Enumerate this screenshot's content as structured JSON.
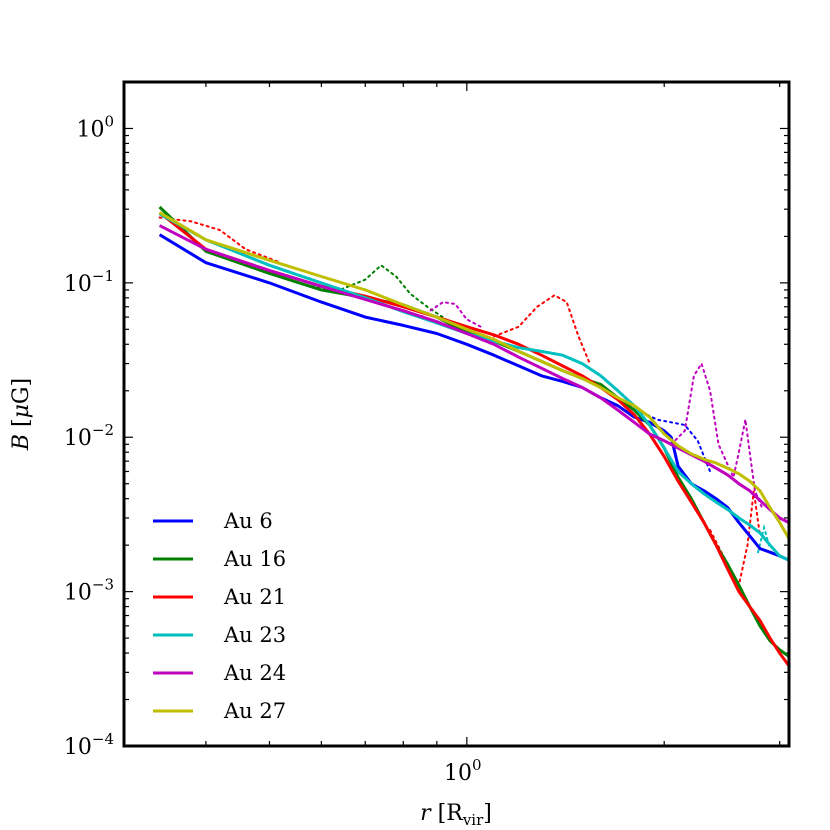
{
  "chart_data": {
    "type": "line",
    "title": "",
    "xlabel": "r [R_vir]",
    "ylabel": "B [μG]",
    "xscale": "log",
    "yscale": "log",
    "xlim": [
      0.3,
      3.1
    ],
    "ylim": [
      0.0001,
      2
    ],
    "xticks": [
      {
        "value": 1,
        "label": "10^0"
      }
    ],
    "yticks": [
      {
        "value": 1,
        "label": "10^0"
      },
      {
        "value": 0.1,
        "label": "10^-1"
      },
      {
        "value": 0.01,
        "label": "10^-2"
      },
      {
        "value": 0.001,
        "label": "10^-3"
      },
      {
        "value": 0.0001,
        "label": "10^-4"
      }
    ],
    "legend_position": "lower-left",
    "series": [
      {
        "name": "Au 6",
        "color": "#0000ff",
        "x": [
          0.34,
          0.4,
          0.5,
          0.6,
          0.7,
          0.8,
          0.9,
          1.0,
          1.1,
          1.2,
          1.3,
          1.4,
          1.5,
          1.6,
          1.7,
          1.8,
          1.9,
          2.0,
          2.05,
          2.1,
          2.2,
          2.3,
          2.4,
          2.5,
          2.6,
          2.7,
          2.8,
          2.9,
          3.0,
          3.1
        ],
        "y": [
          0.205,
          0.135,
          0.1,
          0.075,
          0.06,
          0.053,
          0.047,
          0.04,
          0.034,
          0.029,
          0.025,
          0.023,
          0.021,
          0.018,
          0.016,
          0.0135,
          0.0125,
          0.011,
          0.01,
          0.0065,
          0.005,
          0.0045,
          0.004,
          0.0035,
          0.0028,
          0.0023,
          0.0019,
          0.0018,
          0.0017,
          0.0016
        ]
      },
      {
        "name": "Au 16",
        "color": "#008000",
        "x": [
          0.34,
          0.4,
          0.5,
          0.6,
          0.7,
          0.8,
          0.9,
          1.0,
          1.1,
          1.2,
          1.3,
          1.4,
          1.5,
          1.6,
          1.7,
          1.8,
          1.9,
          2.0,
          2.1,
          2.2,
          2.3,
          2.4,
          2.5,
          2.6,
          2.7,
          2.8,
          2.9,
          3.0,
          3.1
        ],
        "y": [
          0.31,
          0.16,
          0.115,
          0.09,
          0.08,
          0.072,
          0.06,
          0.048,
          0.042,
          0.036,
          0.031,
          0.027,
          0.024,
          0.022,
          0.018,
          0.015,
          0.012,
          0.0085,
          0.0055,
          0.004,
          0.0028,
          0.002,
          0.0015,
          0.0011,
          0.0008,
          0.0006,
          0.00048,
          0.00042,
          0.00038
        ]
      },
      {
        "name": "Au 21",
        "color": "#ff0000",
        "x": [
          0.34,
          0.4,
          0.5,
          0.6,
          0.7,
          0.8,
          0.9,
          1.0,
          1.1,
          1.2,
          1.3,
          1.4,
          1.5,
          1.6,
          1.7,
          1.8,
          1.9,
          2.0,
          2.1,
          2.2,
          2.3,
          2.4,
          2.5,
          2.6,
          2.7,
          2.8,
          2.9,
          3.0,
          3.1
        ],
        "y": [
          0.285,
          0.165,
          0.12,
          0.095,
          0.082,
          0.07,
          0.06,
          0.052,
          0.046,
          0.04,
          0.034,
          0.029,
          0.025,
          0.021,
          0.0175,
          0.014,
          0.0105,
          0.0075,
          0.0052,
          0.0038,
          0.0028,
          0.002,
          0.0014,
          0.001,
          0.0008,
          0.00065,
          0.0005,
          0.0004,
          0.00033
        ]
      },
      {
        "name": "Au 23",
        "color": "#00bfbf",
        "x": [
          0.34,
          0.4,
          0.5,
          0.6,
          0.7,
          0.8,
          0.9,
          1.0,
          1.1,
          1.2,
          1.3,
          1.4,
          1.5,
          1.6,
          1.7,
          1.8,
          1.9,
          2.0,
          2.1,
          2.2,
          2.3,
          2.4,
          2.5,
          2.6,
          2.7,
          2.8,
          2.9,
          3.0,
          3.1
        ],
        "y": [
          0.28,
          0.19,
          0.13,
          0.1,
          0.08,
          0.065,
          0.055,
          0.047,
          0.042,
          0.038,
          0.036,
          0.034,
          0.03,
          0.025,
          0.02,
          0.016,
          0.012,
          0.0085,
          0.006,
          0.005,
          0.0043,
          0.0038,
          0.0034,
          0.003,
          0.0027,
          0.0024,
          0.002,
          0.0017,
          0.0016
        ]
      },
      {
        "name": "Au 24",
        "color": "#bf00bf",
        "x": [
          0.34,
          0.4,
          0.5,
          0.6,
          0.7,
          0.8,
          0.9,
          1.0,
          1.1,
          1.2,
          1.3,
          1.4,
          1.5,
          1.6,
          1.7,
          1.8,
          1.9,
          2.0,
          2.1,
          2.2,
          2.3,
          2.4,
          2.5,
          2.6,
          2.7,
          2.8,
          2.9,
          3.0,
          3.1
        ],
        "y": [
          0.235,
          0.165,
          0.12,
          0.095,
          0.078,
          0.066,
          0.056,
          0.047,
          0.04,
          0.033,
          0.028,
          0.024,
          0.021,
          0.018,
          0.015,
          0.0125,
          0.0105,
          0.0095,
          0.0085,
          0.0077,
          0.007,
          0.0063,
          0.0057,
          0.005,
          0.0045,
          0.0039,
          0.0034,
          0.003,
          0.0028
        ]
      },
      {
        "name": "Au 27",
        "color": "#bfbf00",
        "x": [
          0.34,
          0.4,
          0.5,
          0.6,
          0.7,
          0.8,
          0.9,
          1.0,
          1.1,
          1.2,
          1.3,
          1.4,
          1.5,
          1.6,
          1.7,
          1.8,
          1.9,
          2.0,
          2.1,
          2.2,
          2.3,
          2.4,
          2.5,
          2.6,
          2.7,
          2.8,
          2.9,
          3.0,
          3.1
        ],
        "y": [
          0.285,
          0.19,
          0.14,
          0.11,
          0.09,
          0.072,
          0.06,
          0.05,
          0.043,
          0.036,
          0.031,
          0.027,
          0.024,
          0.021,
          0.018,
          0.016,
          0.0135,
          0.0105,
          0.0088,
          0.0078,
          0.0072,
          0.0068,
          0.0063,
          0.0058,
          0.0052,
          0.0045,
          0.0035,
          0.0028,
          0.0022
        ]
      }
    ],
    "dotted_series": [
      {
        "name": "Au 16 (dotted)",
        "color": "#008000",
        "x": [
          0.58,
          0.64,
          0.7,
          0.74,
          0.78,
          0.82,
          0.87,
          0.93
        ],
        "y": [
          0.095,
          0.09,
          0.105,
          0.13,
          0.11,
          0.085,
          0.07,
          0.058
        ]
      },
      {
        "name": "Au 21 (dotted)",
        "color": "#ff0000",
        "x": [
          0.34,
          0.38,
          0.42,
          0.46,
          0.52,
          1.1,
          1.2,
          1.28,
          1.36,
          1.42,
          1.48,
          1.54
        ],
        "y": [
          0.265,
          0.25,
          0.22,
          0.165,
          0.135,
          0.045,
          0.052,
          0.07,
          0.083,
          0.075,
          0.045,
          0.03
        ],
        "break_after_index": 4
      },
      {
        "name": "Au 21 outer (dotted)",
        "color": "#ff0000",
        "x": [
          2.35,
          2.5,
          2.6,
          2.68,
          2.74,
          2.8
        ],
        "y": [
          0.0025,
          0.0015,
          0.0011,
          0.002,
          0.0045,
          0.0023
        ]
      },
      {
        "name": "Au 24 (dotted)",
        "color": "#bf00bf",
        "x": [
          0.85,
          0.92,
          0.96,
          1.0,
          1.05,
          2.05,
          2.15,
          2.22,
          2.28,
          2.35,
          2.42,
          2.55,
          2.6,
          2.66,
          2.7,
          2.75,
          2.82
        ],
        "y": [
          0.06,
          0.075,
          0.073,
          0.058,
          0.052,
          0.009,
          0.011,
          0.025,
          0.03,
          0.02,
          0.009,
          0.0055,
          0.008,
          0.013,
          0.008,
          0.0045,
          0.0035
        ],
        "break_after_index": 4
      },
      {
        "name": "Au 6 (dotted)",
        "color": "#0000ff",
        "x": [
          1.85,
          1.95,
          2.05,
          2.15,
          2.25,
          2.35
        ],
        "y": [
          0.0145,
          0.013,
          0.0125,
          0.012,
          0.0095,
          0.006
        ]
      },
      {
        "name": "Au 23 (dotted)",
        "color": "#00bfbf",
        "x": [
          2.78,
          2.84,
          2.9
        ],
        "y": [
          0.0018,
          0.0026,
          0.0019
        ]
      }
    ]
  }
}
